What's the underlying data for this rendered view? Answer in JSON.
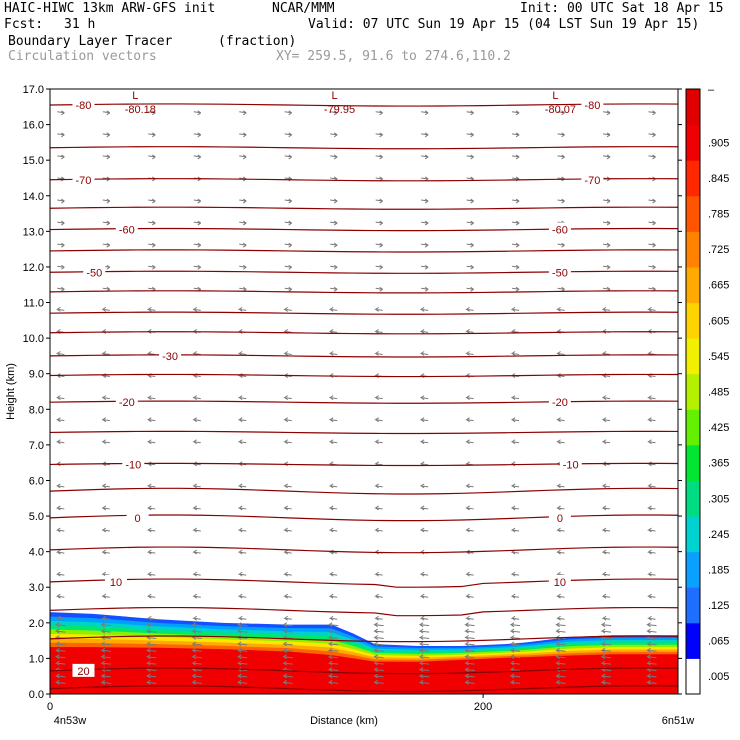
{
  "header": {
    "title": "HAIC-HIWC 13km ARW-GFS init",
    "org": "NCAR/MMM",
    "init": "Init: 00 UTC Sat 18 Apr 15",
    "fcst_label": "Fcst:",
    "fcst_value": "31 h",
    "valid": "Valid: 07 UTC Sun 19 Apr 15 (04 LST Sun 19 Apr 15)",
    "field": "Boundary Layer Tracer",
    "units": "(fraction)",
    "vectors": "Circulation vectors",
    "xy": "XY= 259.5, 91.6 to 274.6,110.2"
  },
  "chart_data": {
    "type": "heatmap",
    "xlabel": "Distance (km)",
    "ylabel": "Height (km)",
    "xlim": [
      0,
      290
    ],
    "ylim": [
      0,
      17
    ],
    "x_ticks": [
      {
        "v": 0,
        "label": "0"
      },
      {
        "v": 200,
        "label": "200"
      }
    ],
    "x_end_labels": {
      "left": "4n53w",
      "right": "6n51w"
    },
    "y_ticks": [
      "0.0",
      "1.0",
      "2.0",
      "3.0",
      "4.0",
      "5.0",
      "6.0",
      "7.0",
      "8.0",
      "9.0",
      "10.0",
      "11.0",
      "12.0",
      "13.0",
      "14.0",
      "15.0",
      "16.0",
      "17.0"
    ],
    "tracer_top_km": [
      [
        0,
        2.3
      ],
      [
        20,
        2.25
      ],
      [
        50,
        2.1
      ],
      [
        80,
        2.0
      ],
      [
        110,
        1.95
      ],
      [
        130,
        1.95
      ],
      [
        140,
        1.7
      ],
      [
        150,
        1.4
      ],
      [
        170,
        1.35
      ],
      [
        190,
        1.35
      ],
      [
        210,
        1.4
      ],
      [
        220,
        1.45
      ],
      [
        240,
        1.6
      ],
      [
        260,
        1.65
      ],
      [
        290,
        1.65
      ]
    ],
    "red_top_km": [
      [
        0,
        1.2
      ],
      [
        50,
        1.2
      ],
      [
        100,
        1.15
      ],
      [
        120,
        1.05
      ],
      [
        135,
        0.95
      ],
      [
        150,
        0.85
      ],
      [
        175,
        0.85
      ],
      [
        200,
        0.95
      ],
      [
        230,
        1.0
      ],
      [
        260,
        1.05
      ],
      [
        290,
        1.05
      ]
    ],
    "colorbar": {
      "labels": [
        ".005",
        ".065",
        ".125",
        ".185",
        ".245",
        ".305",
        ".365",
        ".425",
        ".485",
        ".545",
        ".605",
        ".665",
        ".725",
        ".785",
        ".845",
        ".905"
      ],
      "colors": [
        "#ffffff",
        "#0000ff",
        "#1e6eff",
        "#0aa0ff",
        "#00d2d2",
        "#00dc82",
        "#00e632",
        "#64f000",
        "#b4f000",
        "#f0f000",
        "#ffd200",
        "#ffaa00",
        "#ff8200",
        "#ff5500",
        "#ff2800",
        "#f00000",
        "#e10000"
      ]
    },
    "temperature_contours": [
      {
        "h": 0.15,
        "label": "",
        "showLabel": false
      },
      {
        "h": 0.65,
        "label": "20",
        "lx": 15
      },
      {
        "h": 1.55,
        "label": ""
      },
      {
        "h": 2.35,
        "label": ""
      },
      {
        "h": 3.15,
        "label": "10",
        "lx": 30,
        "rx": 235
      },
      {
        "h": 4.05,
        "label": ""
      },
      {
        "h": 4.95,
        "label": "0",
        "lx": 40,
        "rx": 235
      },
      {
        "h": 5.7,
        "label": ""
      },
      {
        "h": 6.45,
        "label": "-10",
        "lx": 38,
        "rx": 240
      },
      {
        "h": 7.35,
        "label": ""
      },
      {
        "h": 8.2,
        "label": "-20",
        "lx": 35,
        "rx": 235
      },
      {
        "h": 8.95,
        "label": ""
      },
      {
        "h": 9.5,
        "label": "-30",
        "lx": 55
      },
      {
        "h": 10.15,
        "label": ""
      },
      {
        "h": 10.7,
        "label": ""
      },
      {
        "h": 11.3,
        "label": ""
      },
      {
        "h": 11.85,
        "label": "-50",
        "lx": 20,
        "rx": 235
      },
      {
        "h": 12.45,
        "label": ""
      },
      {
        "h": 13.05,
        "label": "-60",
        "lx": 35,
        "rx": 235
      },
      {
        "h": 13.65,
        "label": ""
      },
      {
        "h": 14.45,
        "label": "-70",
        "lx": 15,
        "rx": 250
      },
      {
        "h": 15.35,
        "label": ""
      },
      {
        "h": 16.55,
        "label": "-80",
        "lx": 15,
        "rx": 250
      }
    ],
    "lows": [
      {
        "x": 38,
        "v": "-80.18"
      },
      {
        "x": 130,
        "v": "-79.95"
      },
      {
        "x": 232,
        "v": "-80.07"
      }
    ],
    "low_marker": "L"
  }
}
